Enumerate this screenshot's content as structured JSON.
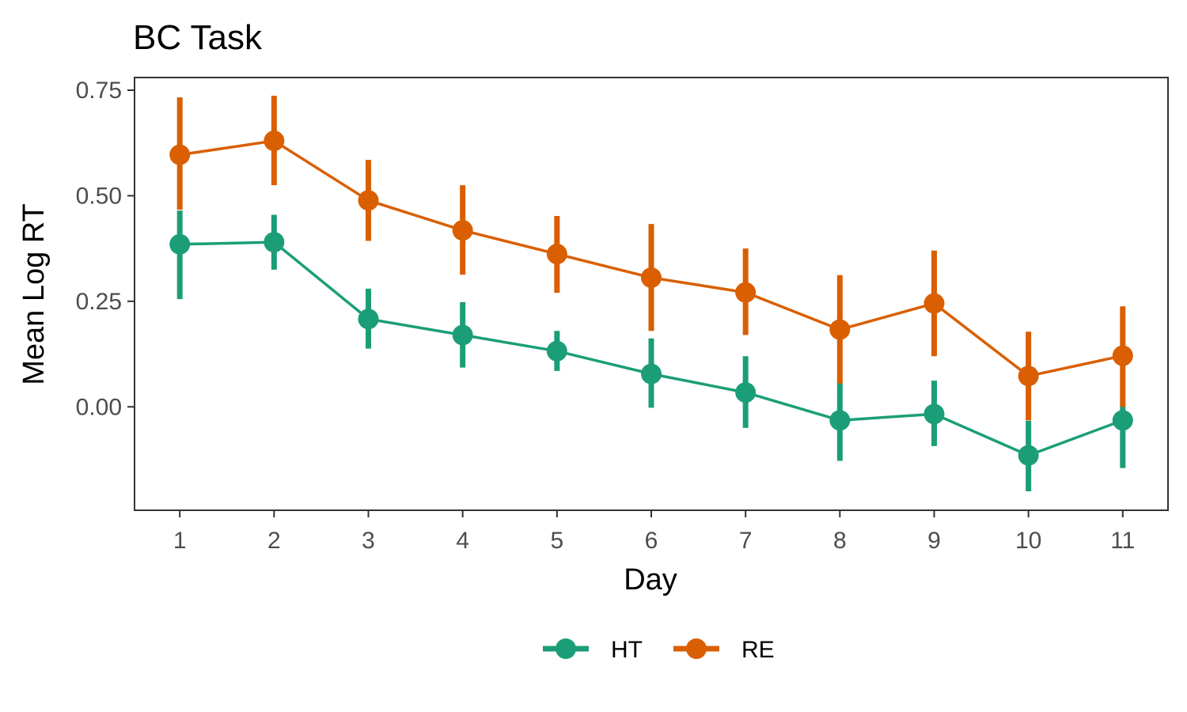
{
  "chart_data": {
    "type": "line",
    "title": "BC Task",
    "xlabel": "Day",
    "ylabel": "Mean Log RT",
    "x": [
      1,
      2,
      3,
      4,
      5,
      6,
      7,
      8,
      9,
      10,
      11
    ],
    "x_ticks": [
      "1",
      "2",
      "3",
      "4",
      "5",
      "6",
      "7",
      "8",
      "9",
      "10",
      "11"
    ],
    "xlim": [
      0.52,
      11.48
    ],
    "ylim": [
      -0.245,
      0.78
    ],
    "y_ticks": [
      {
        "value": 0.75,
        "label": "0.75"
      },
      {
        "value": 0.5,
        "label": "0.50"
      },
      {
        "value": 0.25,
        "label": "0.25"
      },
      {
        "value": 0.0,
        "label": "0.00"
      }
    ],
    "grid": false,
    "legend_position": "bottom",
    "error_bars": true,
    "series": [
      {
        "name": "HT",
        "color": "#1b9e77",
        "values": [
          0.385,
          0.39,
          0.208,
          0.17,
          0.132,
          0.078,
          0.034,
          -0.032,
          -0.017,
          -0.115,
          -0.032
        ],
        "lower": [
          0.255,
          0.325,
          0.138,
          0.093,
          0.085,
          -0.002,
          -0.05,
          -0.128,
          -0.093,
          -0.2,
          -0.145
        ],
        "upper": [
          0.465,
          0.455,
          0.28,
          0.248,
          0.18,
          0.162,
          0.12,
          0.06,
          0.062,
          -0.033,
          0.008
        ]
      },
      {
        "name": "RE",
        "color": "#d95f02",
        "values": [
          0.597,
          0.63,
          0.489,
          0.418,
          0.362,
          0.306,
          0.271,
          0.183,
          0.245,
          0.073,
          0.121
        ],
        "lower": [
          0.467,
          0.525,
          0.393,
          0.313,
          0.27,
          0.18,
          0.17,
          0.055,
          0.12,
          -0.032,
          0.0
        ],
        "upper": [
          0.733,
          0.737,
          0.585,
          0.525,
          0.452,
          0.433,
          0.375,
          0.312,
          0.37,
          0.178,
          0.238
        ]
      }
    ]
  }
}
